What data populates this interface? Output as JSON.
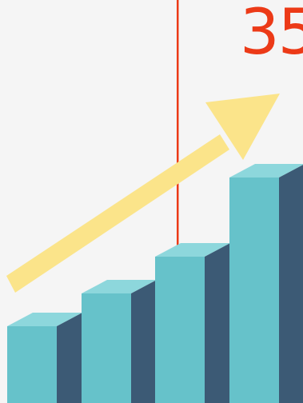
{
  "headline": {
    "number": "35"
  },
  "colors": {
    "background": "#f5f5f5",
    "accent_red": "#ec3a17",
    "bar_front": "#66c2ca",
    "bar_top": "#8dd7dc",
    "bar_side": "#3c5a75",
    "arrow": "#fbe48a"
  },
  "illustration": {
    "bar_count": 4,
    "arrow_icon": "trend-up-arrow-icon"
  }
}
